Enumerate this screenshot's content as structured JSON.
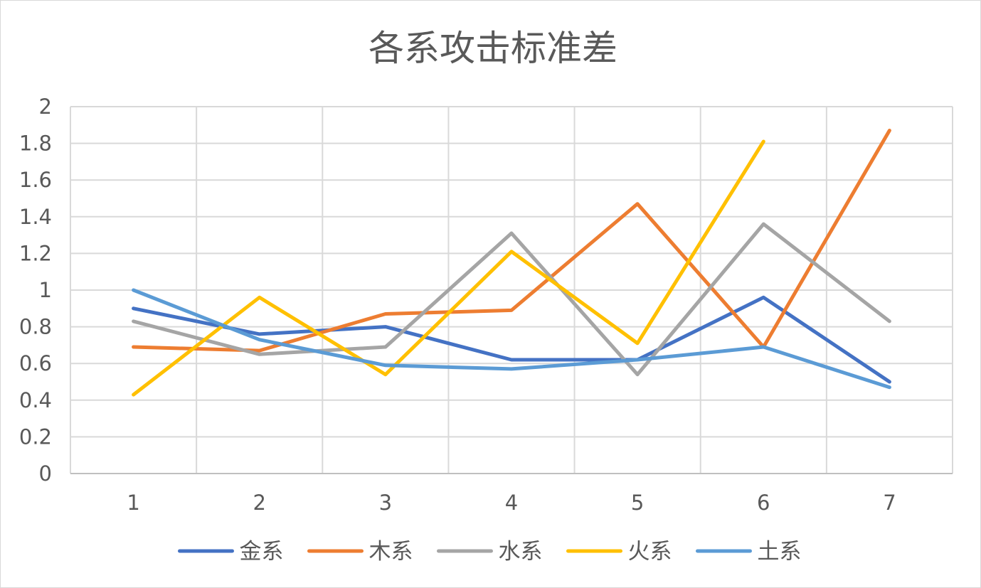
{
  "chart_data": {
    "type": "line",
    "title": "各系攻击标准差",
    "xlabel": "",
    "ylabel": "",
    "categories": [
      "1",
      "2",
      "3",
      "4",
      "5",
      "6",
      "7"
    ],
    "ylim": [
      0,
      2
    ],
    "yticks": [
      0,
      0.2,
      0.4,
      0.6,
      0.8,
      1,
      1.2,
      1.4,
      1.6,
      1.8,
      2
    ],
    "ytick_labels": [
      "0",
      "0.2",
      "0.4",
      "0.6",
      "0.8",
      "1",
      "1.2",
      "1.4",
      "1.6",
      "1.8",
      "2"
    ],
    "grid": true,
    "legend_position": "bottom",
    "series": [
      {
        "name": "金系",
        "color": "#4472C4",
        "values": [
          0.9,
          0.76,
          0.8,
          0.62,
          0.62,
          0.96,
          0.5
        ]
      },
      {
        "name": "木系",
        "color": "#ED7D31",
        "values": [
          0.69,
          0.67,
          0.87,
          0.89,
          1.47,
          0.69,
          1.87
        ]
      },
      {
        "name": "水系",
        "color": "#A5A5A5",
        "values": [
          0.83,
          0.65,
          0.69,
          1.31,
          0.54,
          1.36,
          0.83
        ]
      },
      {
        "name": "火系",
        "color": "#FFC000",
        "values": [
          0.43,
          0.96,
          0.54,
          1.21,
          0.71,
          1.81,
          null
        ]
      },
      {
        "name": "土系",
        "color": "#5B9BD5",
        "values": [
          1.0,
          0.73,
          0.59,
          0.57,
          0.62,
          0.69,
          0.47
        ]
      }
    ]
  }
}
